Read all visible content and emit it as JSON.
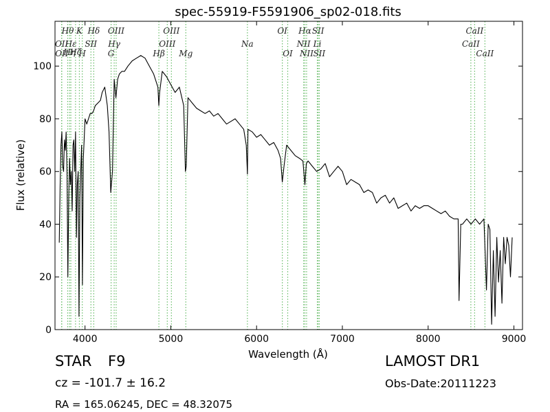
{
  "chart_data": {
    "type": "line",
    "title": "spec-55919-F5591906_sp02-018.fits",
    "xlabel": "Wavelength (Å)",
    "ylabel": "Flux (relative)",
    "xlim": [
      3650,
      9100
    ],
    "ylim": [
      0,
      117
    ],
    "xticks": [
      4000,
      5000,
      6000,
      7000,
      8000,
      9000
    ],
    "yticks": [
      0,
      20,
      40,
      60,
      80,
      100
    ],
    "grid": false,
    "line_color": "#000000",
    "marker_color": "#66bb66",
    "series": [
      {
        "x": [
          3700,
          3710,
          3720,
          3730,
          3740,
          3750,
          3760,
          3770,
          3780,
          3790,
          3800,
          3810,
          3820,
          3830,
          3840,
          3850,
          3860,
          3870,
          3880,
          3890,
          3900,
          3910,
          3920,
          3930,
          3940,
          3950,
          3960,
          3970,
          3980,
          3990,
          4000,
          4020,
          4040,
          4060,
          4080,
          4100,
          4120,
          4150,
          4180,
          4200,
          4230,
          4260,
          4280,
          4300,
          4320,
          4340,
          4360,
          4380,
          4400,
          4430,
          4460,
          4500,
          4550,
          4600,
          4650,
          4700,
          4750,
          4800,
          4850,
          4860,
          4870,
          4900,
          4950,
          5000,
          5050,
          5100,
          5150,
          5170,
          5180,
          5200,
          5250,
          5300,
          5350,
          5400,
          5450,
          5500,
          5550,
          5600,
          5650,
          5700,
          5750,
          5800,
          5850,
          5880,
          5893,
          5900,
          5950,
          6000,
          6050,
          6100,
          6150,
          6200,
          6250,
          6280,
          6300,
          6320,
          6350,
          6400,
          6450,
          6500,
          6540,
          6563,
          6580,
          6600,
          6650,
          6700,
          6750,
          6800,
          6850,
          6900,
          6950,
          7000,
          7050,
          7100,
          7150,
          7200,
          7250,
          7300,
          7350,
          7400,
          7450,
          7500,
          7550,
          7600,
          7650,
          7700,
          7750,
          7800,
          7850,
          7900,
          7950,
          8000,
          8050,
          8100,
          8150,
          8200,
          8250,
          8300,
          8350,
          8360,
          8380,
          8400,
          8450,
          8500,
          8550,
          8600,
          8650,
          8680,
          8700,
          8720,
          8740,
          8760,
          8780,
          8800,
          8820,
          8840,
          8860,
          8880,
          8900,
          8920,
          8940,
          8960,
          8980
        ],
        "y": [
          33,
          55,
          70,
          75,
          62,
          60,
          72,
          68,
          75,
          60,
          20,
          50,
          65,
          55,
          60,
          45,
          70,
          72,
          60,
          75,
          35,
          55,
          60,
          5,
          50,
          60,
          70,
          17,
          65,
          72,
          80,
          78,
          80,
          82,
          82,
          83,
          85,
          86,
          87,
          90,
          92,
          85,
          75,
          52,
          60,
          95,
          88,
          95,
          97,
          98,
          98,
          100,
          102,
          103,
          104,
          103,
          100,
          97,
          92,
          85,
          90,
          98,
          96,
          93,
          90,
          92,
          85,
          60,
          62,
          88,
          86,
          84,
          83,
          82,
          83,
          81,
          82,
          80,
          78,
          79,
          80,
          78,
          76,
          70,
          59,
          76,
          75,
          73,
          74,
          72,
          70,
          71,
          68,
          65,
          56,
          62,
          70,
          68,
          66,
          65,
          64,
          55,
          63,
          64,
          62,
          60,
          61,
          63,
          58,
          60,
          62,
          60,
          55,
          57,
          56,
          55,
          52,
          53,
          52,
          48,
          50,
          51,
          48,
          50,
          46,
          47,
          48,
          45,
          47,
          46,
          47,
          47,
          46,
          45,
          44,
          45,
          43,
          42,
          42,
          11,
          40,
          40,
          42,
          40,
          42,
          40,
          42,
          15,
          40,
          38,
          2,
          30,
          5,
          35,
          18,
          30,
          10,
          35,
          25,
          35,
          32,
          20,
          35
        ]
      }
    ],
    "spectral_lines": [
      {
        "label": "Hθ",
        "x": 3798,
        "row": 0
      },
      {
        "label": "K",
        "x": 3934,
        "row": 0
      },
      {
        "label": "Hδ",
        "x": 4102,
        "row": 0
      },
      {
        "label": "OIII",
        "x": 4363,
        "row": 0
      },
      {
        "label": "OIII",
        "x": 5007,
        "row": 0
      },
      {
        "label": "OI",
        "x": 6300,
        "row": 0
      },
      {
        "label": "Hα",
        "x": 6563,
        "row": 0
      },
      {
        "label": "SII",
        "x": 6717,
        "row": 0
      },
      {
        "label": "CaII",
        "x": 8542,
        "row": 0
      },
      {
        "label": "OII",
        "x": 3727,
        "row": 1
      },
      {
        "label": "Hε",
        "x": 3835,
        "row": 1
      },
      {
        "label": "SII",
        "x": 4069,
        "row": 1
      },
      {
        "label": "Hγ",
        "x": 4340,
        "row": 1
      },
      {
        "label": "OIII",
        "x": 4959,
        "row": 1
      },
      {
        "label": "Na",
        "x": 5893,
        "row": 1
      },
      {
        "label": "NII",
        "x": 6548,
        "row": 1
      },
      {
        "label": "Li",
        "x": 6708,
        "row": 1
      },
      {
        "label": "CaII",
        "x": 8498,
        "row": 1
      },
      {
        "label": "Hη",
        "x": 3820,
        "row": 1.5
      },
      {
        "label": "Hζ",
        "x": 3889,
        "row": 1.5
      },
      {
        "label": "OII",
        "x": 3729,
        "row": 2
      },
      {
        "label": "H",
        "x": 3968,
        "row": 2
      },
      {
        "label": "G",
        "x": 4304,
        "row": 2
      },
      {
        "label": "Hβ",
        "x": 4861,
        "row": 2
      },
      {
        "label": "Mg",
        "x": 5175,
        "row": 2
      },
      {
        "label": "OI",
        "x": 6363,
        "row": 2
      },
      {
        "label": "NII",
        "x": 6583,
        "row": 2
      },
      {
        "label": "SII",
        "x": 6731,
        "row": 2
      },
      {
        "label": "CaII",
        "x": 8662,
        "row": 2
      }
    ]
  },
  "info": {
    "cls": "STAR",
    "subclass": "F9",
    "cz": "cz = -101.7 ± 16.2",
    "survey": "LAMOST DR1",
    "obs_date": "Obs-Date:20111223",
    "radec": "RA = 165.06245, DEC = 48.32075"
  }
}
